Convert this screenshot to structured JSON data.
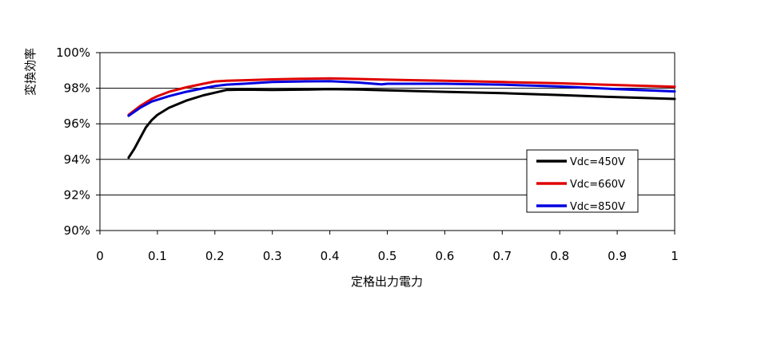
{
  "chart_data": {
    "type": "line",
    "xlabel": "定格出力電力",
    "ylabel": "変換効率",
    "xlim": [
      0,
      1
    ],
    "ylim": [
      90,
      100
    ],
    "x_ticks": [
      0,
      0.1,
      0.2,
      0.3,
      0.4,
      0.5,
      0.6,
      0.7,
      0.8,
      0.9,
      1
    ],
    "x_tick_labels": [
      "0",
      "0.1",
      "0.2",
      "0.3",
      "0.4",
      "0.5",
      "0.6",
      "0.7",
      "0.8",
      "0.9",
      "1"
    ],
    "y_ticks": [
      90,
      92,
      94,
      96,
      98,
      100
    ],
    "y_tick_labels": [
      "90%",
      "92%",
      "94%",
      "96%",
      "98%",
      "100%"
    ],
    "grid": "horizontal",
    "legend_position": "right",
    "series": [
      {
        "name": "Vdc=450V",
        "color": "#000000",
        "x": [
          0.05,
          0.06,
          0.07,
          0.08,
          0.09,
          0.1,
          0.12,
          0.15,
          0.18,
          0.2,
          0.22,
          0.25,
          0.3,
          0.35,
          0.4,
          0.45,
          0.5,
          0.6,
          0.7,
          0.8,
          0.9,
          1.0
        ],
        "y": [
          94.1,
          94.6,
          95.2,
          95.8,
          96.2,
          96.5,
          96.9,
          97.3,
          97.6,
          97.75,
          97.9,
          97.92,
          97.9,
          97.92,
          97.95,
          97.93,
          97.88,
          97.8,
          97.72,
          97.62,
          97.5,
          97.4
        ]
      },
      {
        "name": "Vdc=660V",
        "color": "#e00000",
        "x": [
          0.05,
          0.07,
          0.09,
          0.1,
          0.12,
          0.15,
          0.18,
          0.2,
          0.22,
          0.25,
          0.3,
          0.35,
          0.4,
          0.45,
          0.5,
          0.6,
          0.7,
          0.8,
          0.9,
          1.0
        ],
        "y": [
          96.5,
          97.0,
          97.4,
          97.55,
          97.8,
          98.05,
          98.25,
          98.38,
          98.42,
          98.45,
          98.5,
          98.53,
          98.55,
          98.52,
          98.48,
          98.42,
          98.35,
          98.28,
          98.18,
          98.08
        ]
      },
      {
        "name": "Vdc=850V",
        "color": "#0000e0",
        "x": [
          0.05,
          0.07,
          0.09,
          0.1,
          0.12,
          0.15,
          0.18,
          0.2,
          0.22,
          0.25,
          0.3,
          0.35,
          0.4,
          0.45,
          0.49,
          0.5,
          0.6,
          0.7,
          0.8,
          0.9,
          1.0
        ],
        "y": [
          96.45,
          96.9,
          97.25,
          97.35,
          97.55,
          97.8,
          98.0,
          98.12,
          98.2,
          98.25,
          98.35,
          98.38,
          98.4,
          98.32,
          98.22,
          98.25,
          98.25,
          98.2,
          98.1,
          97.95,
          97.82
        ]
      }
    ]
  }
}
